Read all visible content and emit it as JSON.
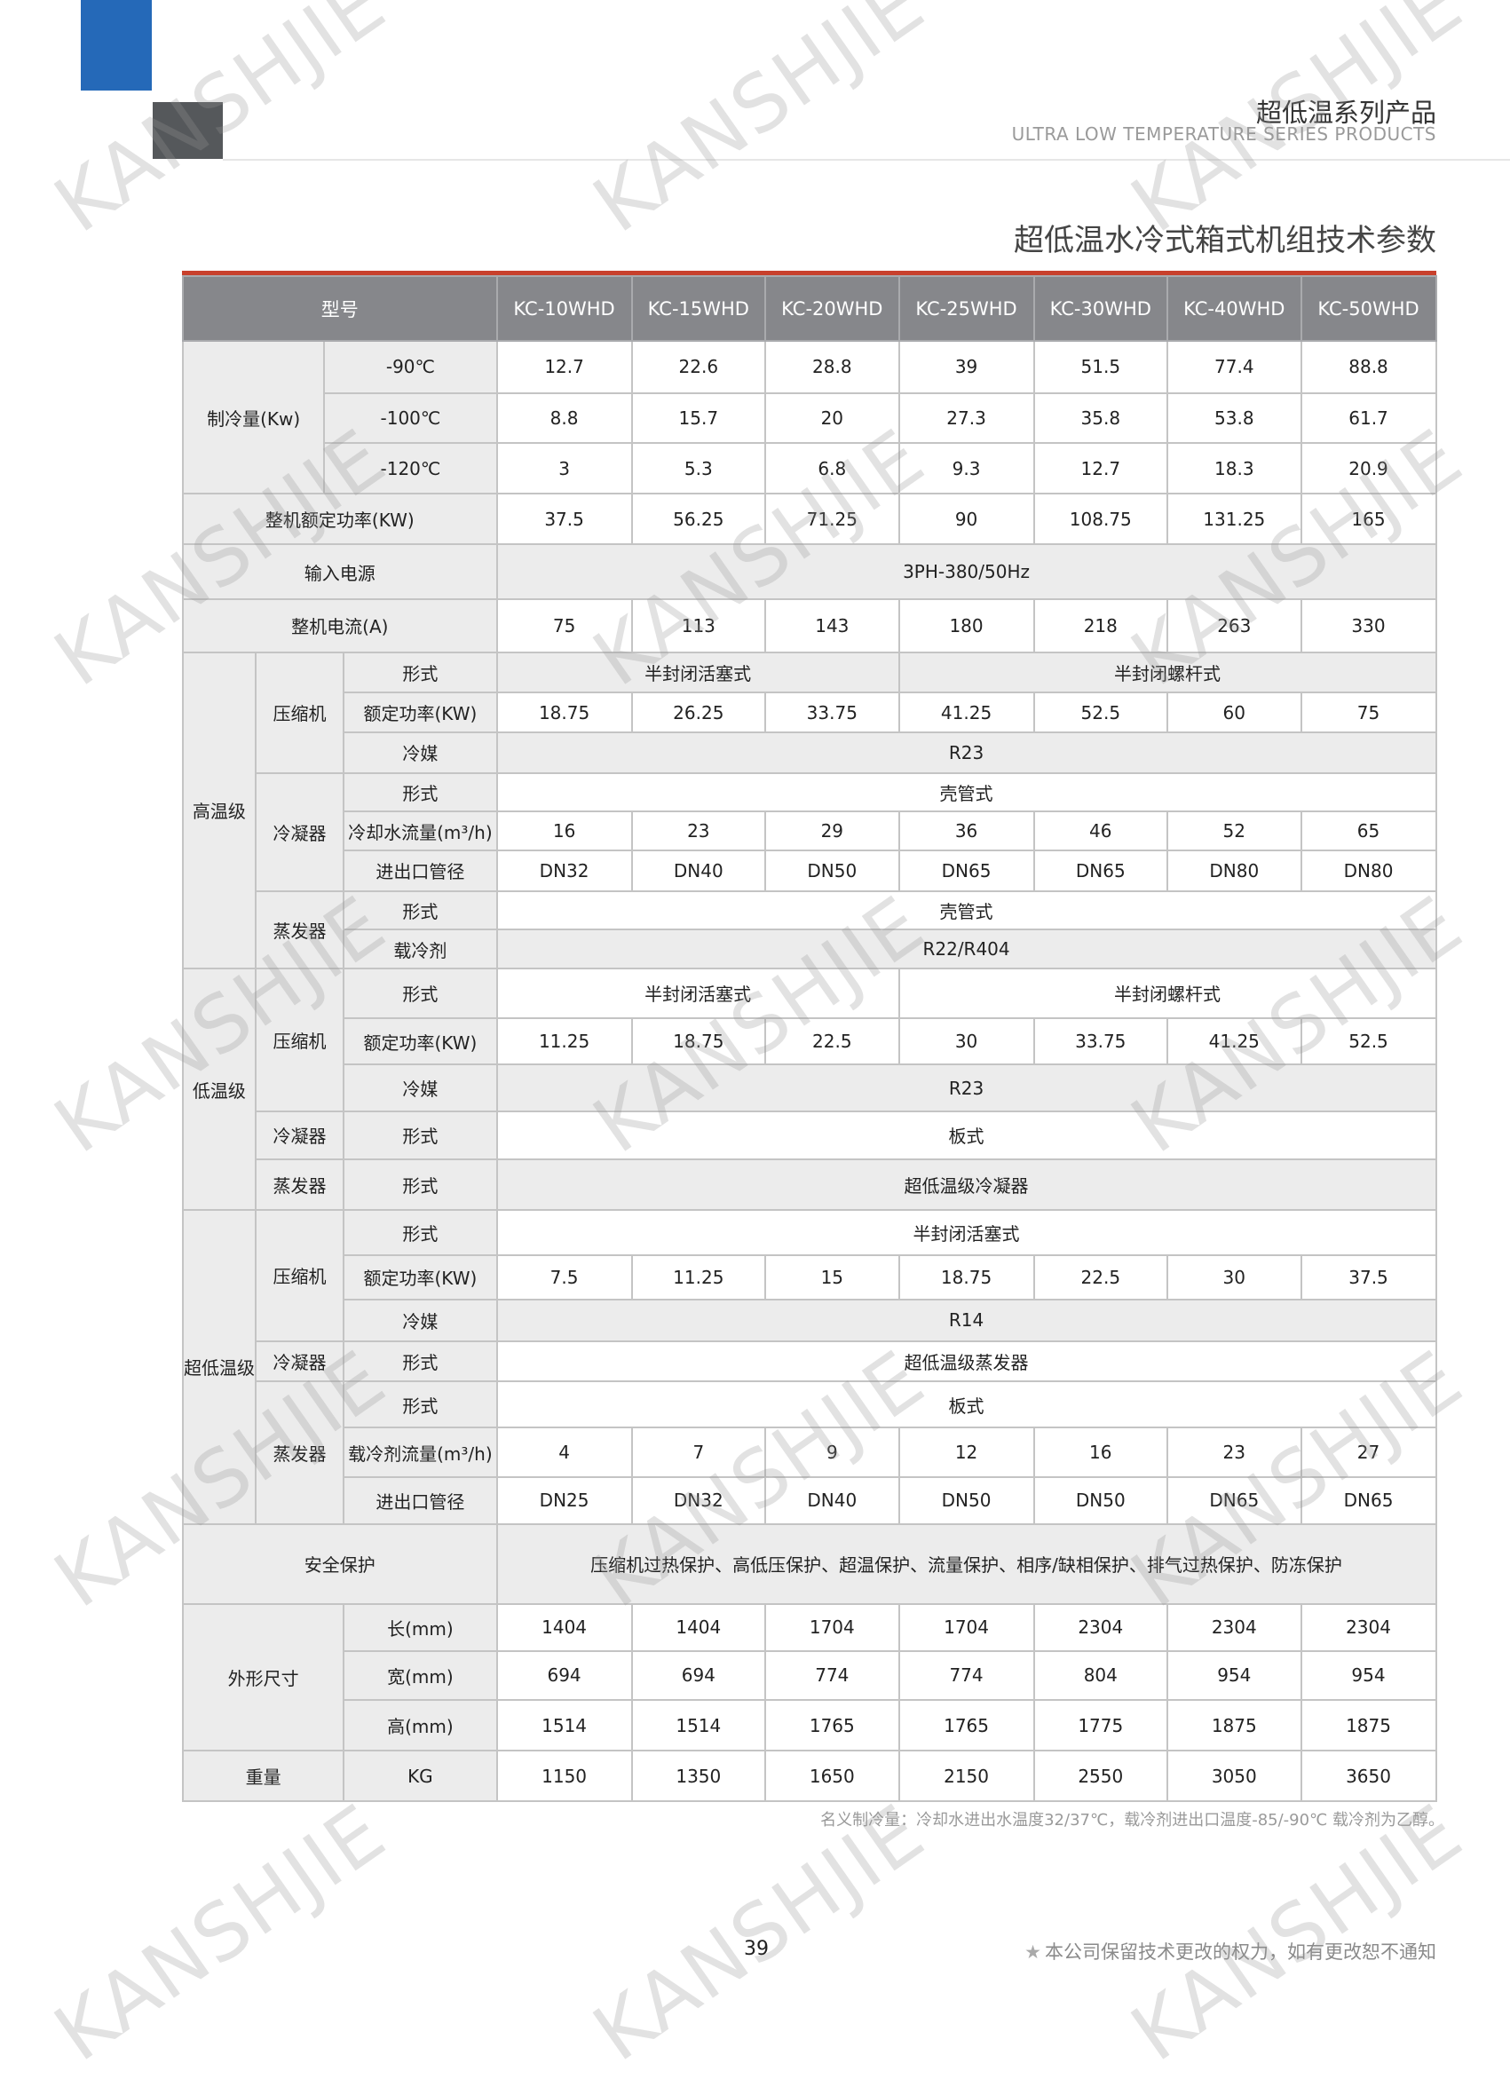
{
  "header": {
    "series_cn": "超低温系列产品",
    "series_en": "ULTRA LOW TEMPERATURE SERIES PRODUCTS",
    "title": "超低温水冷式箱式机组技术参数"
  },
  "colors": {
    "accent_blue": "#2569b8",
    "accent_red": "#c8402c",
    "header_gray": "#86878b"
  },
  "watermark": "KANSHJIE",
  "table": {
    "model_label": "型号",
    "models": [
      "KC-10WHD",
      "KC-15WHD",
      "KC-20WHD",
      "KC-25WHD",
      "KC-30WHD",
      "KC-40WHD",
      "KC-50WHD"
    ],
    "cooling": {
      "label": "制冷量(Kw)",
      "rows": [
        {
          "temp": "-90℃",
          "values": [
            "12.7",
            "22.6",
            "28.8",
            "39",
            "51.5",
            "77.4",
            "88.8"
          ]
        },
        {
          "temp": "-100℃",
          "values": [
            "8.8",
            "15.7",
            "20",
            "27.3",
            "35.8",
            "53.8",
            "61.7"
          ]
        },
        {
          "temp": "-120℃",
          "values": [
            "3",
            "5.3",
            "6.8",
            "9.3",
            "12.7",
            "18.3",
            "20.9"
          ]
        }
      ]
    },
    "power": {
      "label": "整机额定功率(KW)",
      "values": [
        "37.5",
        "56.25",
        "71.25",
        "90",
        "108.75",
        "131.25",
        "165"
      ]
    },
    "input": {
      "label": "输入电源",
      "value": "3PH-380/50Hz"
    },
    "current": {
      "label": "整机电流(A)",
      "values": [
        "75",
        "113",
        "143",
        "180",
        "218",
        "263",
        "330"
      ]
    },
    "high": {
      "label": "高温级",
      "compressor": {
        "label": "压缩机",
        "type_label": "形式",
        "types": [
          "半封闭活塞式",
          "半封闭螺杆式"
        ],
        "power_label": "额定功率(KW)",
        "power": [
          "18.75",
          "26.25",
          "33.75",
          "41.25",
          "52.5",
          "60",
          "75"
        ],
        "refrigerant_label": "冷媒",
        "refrigerant": "R23"
      },
      "condenser": {
        "label": "冷凝器",
        "type_label": "形式",
        "type": "壳管式",
        "flow_label": "冷却水流量(m³/h)",
        "flow": [
          "16",
          "23",
          "29",
          "36",
          "46",
          "52",
          "65"
        ],
        "pipe_label": "进出口管径",
        "pipe": [
          "DN32",
          "DN40",
          "DN50",
          "DN65",
          "DN65",
          "DN80",
          "DN80"
        ]
      },
      "evaporator": {
        "label": "蒸发器",
        "type_label": "形式",
        "type": "壳管式",
        "coolant_label": "载冷剂",
        "coolant": "R22/R404"
      }
    },
    "low": {
      "label": "低温级",
      "compressor": {
        "label": "压缩机",
        "type_label": "形式",
        "types": [
          "半封闭活塞式",
          "半封闭螺杆式"
        ],
        "power_label": "额定功率(KW)",
        "power": [
          "11.25",
          "18.75",
          "22.5",
          "30",
          "33.75",
          "41.25",
          "52.5"
        ],
        "refrigerant_label": "冷媒",
        "refrigerant": "R23"
      },
      "condenser": {
        "label": "冷凝器",
        "type_label": "形式",
        "type": "板式"
      },
      "evaporator": {
        "label": "蒸发器",
        "type_label": "形式",
        "type": "超低温级冷凝器"
      }
    },
    "ultra": {
      "label": "超低温级",
      "compressor": {
        "label": "压缩机",
        "type_label": "形式",
        "type": "半封闭活塞式",
        "power_label": "额定功率(KW)",
        "power": [
          "7.5",
          "11.25",
          "15",
          "18.75",
          "22.5",
          "30",
          "37.5"
        ],
        "refrigerant_label": "冷媒",
        "refrigerant": "R14"
      },
      "condenser": {
        "label": "冷凝器",
        "type_label": "形式",
        "type": "超低温级蒸发器"
      },
      "evaporator": {
        "label": "蒸发器",
        "type_label": "形式",
        "type": "板式",
        "flow_label": "载冷剂流量(m³/h)",
        "flow": [
          "4",
          "7",
          "9",
          "12",
          "16",
          "23",
          "27"
        ],
        "pipe_label": "进出口管径",
        "pipe": [
          "DN25",
          "DN32",
          "DN40",
          "DN50",
          "DN50",
          "DN65",
          "DN65"
        ]
      }
    },
    "safety": {
      "label": "安全保护",
      "value": "压缩机过热保护、高低压保护、超温保护、流量保护、相序/缺相保护、排气过热保护、防冻保护"
    },
    "dimensions": {
      "label": "外形尺寸",
      "rows": [
        {
          "label": "长(mm)",
          "values": [
            "1404",
            "1404",
            "1704",
            "1704",
            "2304",
            "2304",
            "2304"
          ]
        },
        {
          "label": "宽(mm)",
          "values": [
            "694",
            "694",
            "774",
            "774",
            "804",
            "954",
            "954"
          ]
        },
        {
          "label": "高(mm)",
          "values": [
            "1514",
            "1514",
            "1765",
            "1765",
            "1775",
            "1875",
            "1875"
          ]
        }
      ]
    },
    "weight": {
      "label": "重量",
      "unit": "KG",
      "values": [
        "1150",
        "1350",
        "1650",
        "2150",
        "2550",
        "3050",
        "3650"
      ]
    }
  },
  "note": "名义制冷量：冷却水进出水温度32/37℃，载冷剂进出口温度-85/-90℃   载冷剂为乙醇。",
  "footer": {
    "page": "39",
    "star_icon": "star-icon",
    "disclaimer": "本公司保留技术更改的权力，如有更改恕不通知"
  }
}
